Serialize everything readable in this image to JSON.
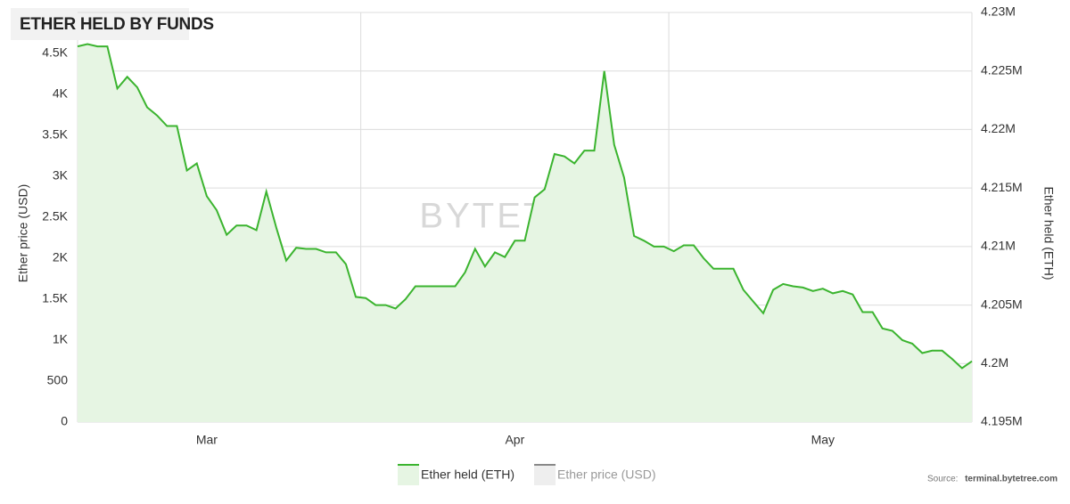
{
  "chart_data": {
    "type": "area",
    "title": "ETHER HELD BY FUNDS",
    "watermark": "BYTETREE",
    "source_label": "Source:",
    "source": "terminal.bytetree.com",
    "ylabel": "Ether price (USD)",
    "y2label": "Ether held (ETH)",
    "categories": [
      null,
      null,
      null,
      null,
      null,
      null,
      null,
      null,
      null,
      null,
      null,
      null,
      null,
      "Mar",
      null,
      null,
      null,
      null,
      null,
      null,
      null,
      null,
      null,
      null,
      null,
      null,
      null,
      null,
      null,
      null,
      null,
      null,
      null,
      null,
      null,
      null,
      null,
      null,
      null,
      null,
      null,
      null,
      null,
      null,
      "Apr",
      null,
      null,
      null,
      null,
      null,
      null,
      null,
      null,
      null,
      null,
      null,
      null,
      null,
      null,
      null,
      null,
      null,
      null,
      null,
      null,
      null,
      null,
      null,
      null,
      null,
      null,
      null,
      null,
      null,
      null,
      "May",
      null,
      null,
      null,
      null,
      null,
      null,
      null,
      null,
      null,
      null,
      null,
      null,
      null,
      null,
      null
    ],
    "series": [
      {
        "name": "Ether held (ETH)",
        "color": "#3bb42f",
        "fill": "#e6f5e3",
        "axis": "y2",
        "visible": true,
        "values": [
          4227100,
          4227300,
          4227100,
          4227100,
          4223500,
          4224500,
          4223600,
          4221900,
          4221200,
          4220300,
          4220300,
          4216500,
          4217100,
          4214300,
          4213100,
          4211000,
          4211800,
          4211800,
          4211400,
          4214700,
          4211600,
          4208800,
          4209900,
          4209800,
          4209800,
          4209500,
          4209500,
          4208500,
          4205700,
          4205600,
          4205000,
          4205000,
          4204700,
          4205500,
          4206600,
          4206600,
          4206600,
          4206600,
          4206600,
          4207800,
          4209800,
          4208300,
          4209500,
          4209100,
          4210500,
          4210500,
          4214200,
          4214900,
          4217900,
          4217700,
          4217100,
          4218200,
          4218200,
          4225000,
          4218700,
          4215900,
          4210900,
          4210500,
          4210000,
          4210000,
          4209600,
          4210100,
          4210100,
          4209000,
          4208100,
          4208100,
          4208100,
          4206300,
          4205300,
          4204300,
          4206300,
          4206800,
          4206600,
          4206500,
          4206200,
          4206400,
          4206000,
          4206200,
          4205900,
          4204400,
          4204400,
          4203000,
          4202800,
          4202000,
          4201700,
          4200900,
          4201100,
          4201100,
          4200400,
          4199600,
          4200200
        ]
      },
      {
        "name": "Ether price (USD)",
        "color": "#888888",
        "fill": "#eeeeee",
        "axis": "y",
        "visible": false
      }
    ],
    "ylim": [
      0,
      5000
    ],
    "yticks": [
      0,
      500,
      {
        "value": 1000,
        "label": "1K"
      },
      {
        "value": 1500,
        "label": "1.5K"
      },
      {
        "value": 2000,
        "label": "2K"
      },
      {
        "value": 2500,
        "label": "2.5K"
      },
      {
        "value": 3000,
        "label": "3K"
      },
      {
        "value": 3500,
        "label": "3.5K"
      },
      {
        "value": 4000,
        "label": "4K"
      },
      {
        "value": 4500,
        "label": "4.5K"
      }
    ],
    "y2lim": [
      4195000,
      4230000
    ],
    "y2ticks": [
      {
        "value": 4195000,
        "label": "4.195M"
      },
      {
        "value": 4200000,
        "label": "4.2M"
      },
      {
        "value": 4205000,
        "label": "4.205M"
      },
      {
        "value": 4210000,
        "label": "4.21M"
      },
      {
        "value": 4215000,
        "label": "4.215M"
      },
      {
        "value": 4220000,
        "label": "4.22M"
      },
      {
        "value": 4225000,
        "label": "4.225M"
      },
      {
        "value": 4230000,
        "label": "4.23M"
      }
    ],
    "grid": true
  }
}
